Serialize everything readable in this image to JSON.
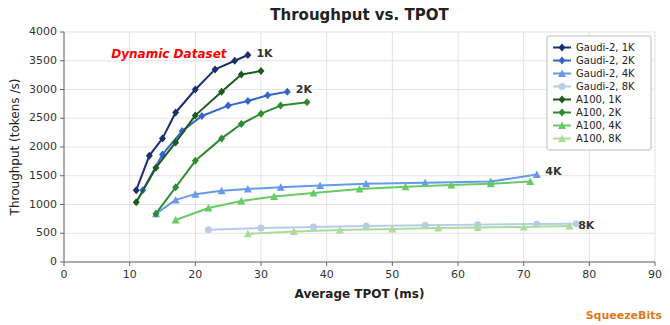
{
  "chart_data": {
    "type": "line",
    "title": "Throughput vs. TPOT",
    "xlabel": "Average TPOT (ms)",
    "ylabel": "Throughput (tokens /s)",
    "xlim": [
      0,
      90
    ],
    "ylim": [
      0,
      4000
    ],
    "xticks": [
      0,
      10,
      20,
      30,
      40,
      50,
      60,
      70,
      80,
      90
    ],
    "yticks": [
      0,
      500,
      1000,
      1500,
      2000,
      2500,
      3000,
      3500,
      4000
    ],
    "grid": true,
    "legend": "upper right",
    "series": [
      {
        "name": "Gaudi-2, 1K",
        "color": "#1a2f6e",
        "marker": "diamond",
        "x": [
          11,
          13,
          15,
          17,
          20,
          23,
          26,
          28
        ],
        "values": [
          1250,
          1850,
          2150,
          2600,
          3000,
          3350,
          3500,
          3600
        ]
      },
      {
        "name": "Gaudi-2, 2K",
        "color": "#3366cc",
        "marker": "diamond",
        "x": [
          12,
          15,
          18,
          21,
          25,
          28,
          31,
          34
        ],
        "values": [
          1250,
          1870,
          2280,
          2540,
          2720,
          2800,
          2900,
          2960
        ]
      },
      {
        "name": "Gaudi-2, 4K",
        "color": "#6699ee",
        "marker": "triangle",
        "x": [
          14,
          17,
          20,
          24,
          28,
          33,
          39,
          46,
          55,
          65,
          72
        ],
        "values": [
          840,
          1080,
          1180,
          1240,
          1270,
          1300,
          1330,
          1360,
          1380,
          1400,
          1520
        ]
      },
      {
        "name": "Gaudi-2, 8K",
        "color": "#b8cce8",
        "marker": "circle",
        "x": [
          22,
          30,
          38,
          46,
          55,
          63,
          72,
          78
        ],
        "values": [
          560,
          590,
          610,
          625,
          640,
          650,
          660,
          665
        ]
      },
      {
        "name": "A100, 1K",
        "color": "#1a5c1a",
        "marker": "diamond",
        "x": [
          11,
          14,
          17,
          20,
          24,
          27,
          30
        ],
        "values": [
          1040,
          1640,
          2080,
          2550,
          2960,
          3260,
          3320
        ]
      },
      {
        "name": "A100, 2K",
        "color": "#2e8b2e",
        "marker": "diamond",
        "x": [
          14,
          17,
          20,
          24,
          27,
          30,
          33,
          37
        ],
        "values": [
          840,
          1300,
          1760,
          2150,
          2400,
          2580,
          2720,
          2780
        ]
      },
      {
        "name": "A100, 4K",
        "color": "#66cc66",
        "marker": "triangle",
        "x": [
          17,
          22,
          27,
          32,
          38,
          45,
          52,
          59,
          65,
          71
        ],
        "values": [
          730,
          940,
          1060,
          1140,
          1200,
          1270,
          1310,
          1340,
          1360,
          1400
        ]
      },
      {
        "name": "A100, 8K",
        "color": "#aadd99",
        "marker": "triangle",
        "x": [
          28,
          35,
          42,
          50,
          57,
          63,
          70,
          77
        ],
        "values": [
          490,
          530,
          555,
          575,
          590,
          600,
          610,
          625
        ]
      }
    ],
    "annotations": [
      {
        "text": "1K",
        "x": 29,
        "y": 3620
      },
      {
        "text": "2K",
        "x": 35,
        "y": 2990
      },
      {
        "text": "4K",
        "x": 73,
        "y": 1560
      },
      {
        "text": "8K",
        "x": 78,
        "y": 625
      },
      {
        "text": "Dynamic Dataset"
      },
      {
        "text": "SqueezeBits"
      }
    ]
  }
}
